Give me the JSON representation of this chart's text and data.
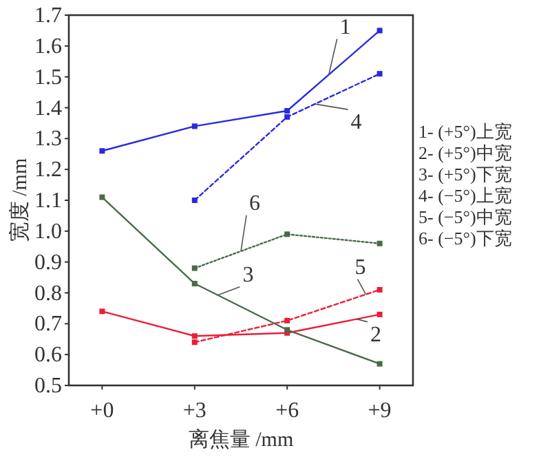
{
  "chart_data": {
    "type": "line",
    "xlabel": "离焦量 /mm",
    "ylabel": "宽度 /mm",
    "categories": [
      "+0",
      "+3",
      "+6",
      "+9"
    ],
    "ylim": [
      0.5,
      1.7
    ],
    "yticks": [
      0.5,
      0.6,
      0.7,
      0.8,
      0.9,
      {
        "value": 1,
        "label": "1.0"
      },
      1.1,
      1.2,
      1.3,
      1.4,
      1.5,
      1.6,
      1.7
    ],
    "grid": false,
    "marker": "square",
    "series": [
      {
        "name": "1",
        "color": "#2a2ae0",
        "line_style": "solid",
        "values": [
          1.26,
          1.34,
          1.39,
          1.65
        ]
      },
      {
        "name": "2",
        "color": "#e82038",
        "line_style": "solid",
        "values": [
          0.74,
          0.66,
          0.67,
          0.73
        ]
      },
      {
        "name": "3",
        "color": "#4a6a4a",
        "line_style": "solid",
        "values": [
          1.11,
          0.83,
          0.68,
          0.57
        ]
      },
      {
        "name": "4",
        "color": "#2a2ae0",
        "line_style": "dashed",
        "values": [
          null,
          1.1,
          1.37,
          1.51
        ]
      },
      {
        "name": "5",
        "color": "#e82038",
        "line_style": "dashed",
        "values": [
          null,
          0.64,
          0.71,
          0.81
        ]
      },
      {
        "name": "6",
        "color": "#4a6a4a",
        "line_style": "dotted",
        "values": [
          null,
          0.88,
          0.99,
          0.96
        ]
      }
    ],
    "annotations": [
      "1- (+5°)上宽",
      "2- (+5°)中宽",
      "3- (+5°)下宽",
      "4- (−5°)上宽",
      "5- (−5°)中宽",
      "6- (−5°)下宽"
    ]
  }
}
